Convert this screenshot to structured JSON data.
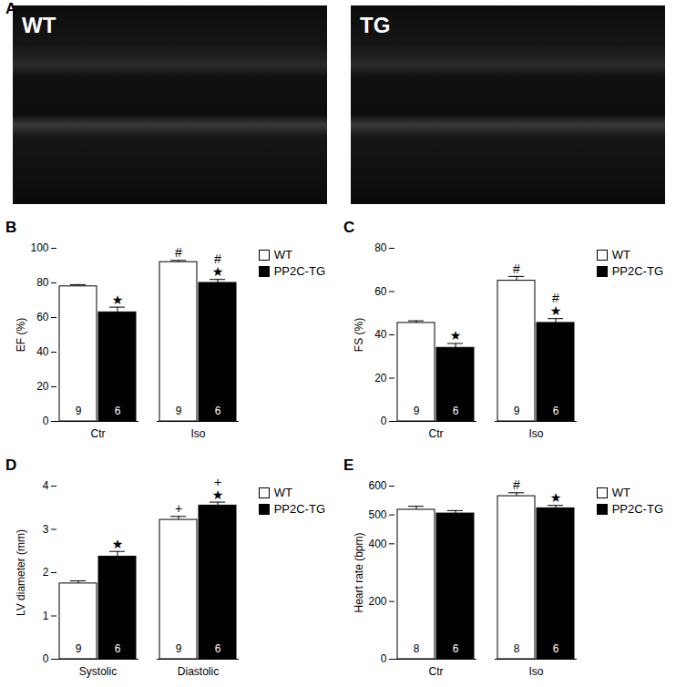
{
  "images": {
    "panel": "A",
    "labels": [
      "WT",
      "TG"
    ]
  },
  "chart_data": [
    {
      "panel": "B",
      "type": "bar",
      "y_label": "EF (%)",
      "categories": [
        "Ctr",
        "Iso"
      ],
      "ylim": [
        0,
        100
      ],
      "yticks": [
        0,
        20,
        40,
        60,
        80,
        100
      ],
      "legend": "top-right",
      "series": [
        {
          "name": "WT",
          "color": "#ffffff",
          "values": [
            78,
            92
          ],
          "errors": [
            1,
            1
          ],
          "n": [
            9,
            9
          ]
        },
        {
          "name": "PP2C-TG",
          "color": "#000000",
          "values": [
            63,
            80
          ],
          "errors": [
            3,
            2
          ],
          "n": [
            6,
            6
          ]
        }
      ],
      "annotations": [
        {
          "category": "Ctr",
          "series": "PP2C-TG",
          "text": [
            "★"
          ]
        },
        {
          "category": "Iso",
          "series": "WT",
          "text": [
            "#"
          ]
        },
        {
          "category": "Iso",
          "series": "PP2C-TG",
          "text": [
            "#",
            "★"
          ]
        }
      ]
    },
    {
      "panel": "C",
      "type": "bar",
      "y_label": "FS (%)",
      "categories": [
        "Ctr",
        "Iso"
      ],
      "ylim": [
        0,
        80
      ],
      "yticks": [
        0,
        20,
        40,
        60,
        80
      ],
      "legend": "top-right",
      "series": [
        {
          "name": "WT",
          "color": "#ffffff",
          "values": [
            45.5,
            65
          ],
          "errors": [
            1,
            2
          ],
          "n": [
            9,
            9
          ]
        },
        {
          "name": "PP2C-TG",
          "color": "#000000",
          "values": [
            34,
            45.5
          ],
          "errors": [
            2,
            2
          ],
          "n": [
            6,
            6
          ]
        }
      ],
      "annotations": [
        {
          "category": "Ctr",
          "series": "PP2C-TG",
          "text": [
            "★"
          ]
        },
        {
          "category": "Iso",
          "series": "WT",
          "text": [
            "#"
          ]
        },
        {
          "category": "Iso",
          "series": "PP2C-TG",
          "text": [
            "#",
            "★"
          ]
        }
      ]
    },
    {
      "panel": "D",
      "type": "bar",
      "y_label": "LV diameter (mm)",
      "categories": [
        "Systolic",
        "Diastolic"
      ],
      "ylim": [
        0,
        4
      ],
      "yticks": [
        0,
        1,
        2,
        3,
        4
      ],
      "legend": "top-right",
      "series": [
        {
          "name": "WT",
          "color": "#ffffff",
          "values": [
            1.75,
            3.22
          ],
          "errors": [
            0.06,
            0.08
          ],
          "n": [
            9,
            9
          ]
        },
        {
          "name": "PP2C-TG",
          "color": "#000000",
          "values": [
            2.37,
            3.55
          ],
          "errors": [
            0.12,
            0.08
          ],
          "n": [
            6,
            6
          ]
        }
      ],
      "annotations": [
        {
          "category": "Systolic",
          "series": "PP2C-TG",
          "text": [
            "★"
          ]
        },
        {
          "category": "Diastolic",
          "series": "WT",
          "text": [
            "+"
          ]
        },
        {
          "category": "Diastolic",
          "series": "PP2C-TG",
          "text": [
            "+",
            "★"
          ]
        }
      ]
    },
    {
      "panel": "E",
      "type": "bar",
      "y_label": "Heart rate (bpm)",
      "categories": [
        "Ctr",
        "Iso"
      ],
      "ylim": [
        0,
        600
      ],
      "yticks": [
        0,
        200,
        400,
        500,
        600
      ],
      "legend": "top-right",
      "series": [
        {
          "name": "WT",
          "color": "#ffffff",
          "values": [
            518,
            565
          ],
          "errors": [
            12,
            12
          ],
          "n": [
            8,
            8
          ]
        },
        {
          "name": "PP2C-TG",
          "color": "#000000",
          "values": [
            505,
            523
          ],
          "errors": [
            10,
            10
          ],
          "n": [
            6,
            6
          ]
        }
      ],
      "annotations": [
        {
          "category": "Iso",
          "series": "WT",
          "text": [
            "#"
          ]
        },
        {
          "category": "Iso",
          "series": "PP2C-TG",
          "text": [
            "★"
          ]
        }
      ]
    }
  ]
}
